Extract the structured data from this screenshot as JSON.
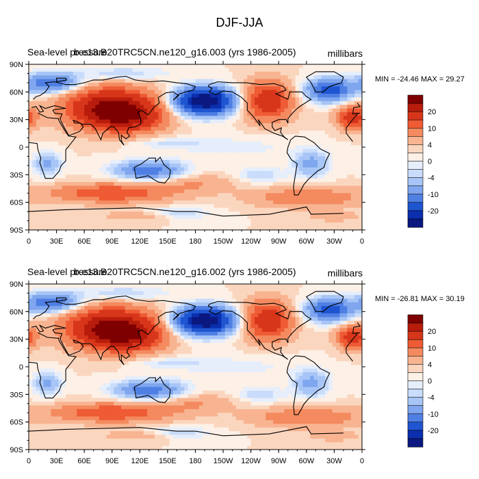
{
  "figure_title": "DJF-JJA",
  "colorbar_levels": [
    "20",
    "10",
    "4",
    "0",
    "-4",
    "-10",
    "-20"
  ],
  "colorbar_colors": [
    "#7f0000",
    "#b71c0c",
    "#d7361b",
    "#ee5b34",
    "#f48a5f",
    "#f8b491",
    "#fbd6bf",
    "#fdf0e6",
    "#e6eefc",
    "#c9dcfb",
    "#a7c5f6",
    "#7fa6ee",
    "#4f7fe3",
    "#1f55d0",
    "#0b2fae",
    "#0a1880"
  ],
  "chart_data": [
    {
      "type": "heatmap",
      "panel": "top",
      "title_left": "Sea-level pressure",
      "title_overlay": "b.e13.B20TRC5CN.ne120_g16.003 (yrs 1986-2005)",
      "units": "millibars",
      "stats": "MIN = -24.46 MAX =  29.27",
      "min": -24.46,
      "max": 29.27,
      "x_ticks": [
        "0",
        "30E",
        "60E",
        "90E",
        "120E",
        "150E",
        "180",
        "150W",
        "120W",
        "90W",
        "60W",
        "30W",
        "0"
      ],
      "y_ticks": [
        "90N",
        "60N",
        "30N",
        "0",
        "30S",
        "60S",
        "90S"
      ],
      "xlim": [
        0,
        360
      ],
      "ylim": [
        -90,
        90
      ]
    },
    {
      "type": "heatmap",
      "panel": "bottom",
      "title_left": "Sea-level pressure",
      "title_overlay": "b.e13.B20TRC5CN.ne120_g16.002 (yrs 1986-2005)",
      "units": "millibars",
      "stats": "MIN = -26.81 MAX =  30.19",
      "min": -26.81,
      "max": 30.19,
      "x_ticks": [
        "0",
        "30E",
        "60E",
        "90E",
        "120E",
        "150E",
        "180",
        "150W",
        "120W",
        "90W",
        "60W",
        "30W",
        "0"
      ],
      "y_ticks": [
        "90N",
        "60N",
        "30N",
        "0",
        "30S",
        "60S",
        "90S"
      ],
      "xlim": [
        0,
        360
      ],
      "ylim": [
        -90,
        90
      ]
    }
  ]
}
